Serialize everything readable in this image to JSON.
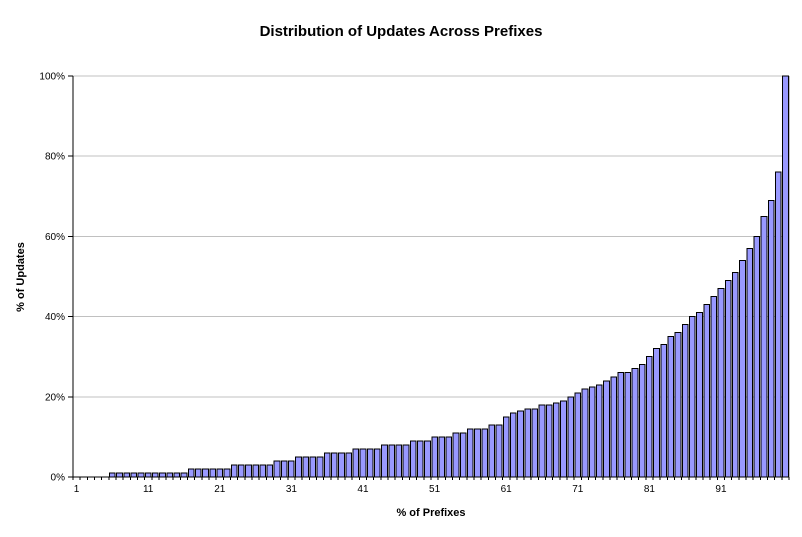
{
  "chart_data": {
    "type": "bar",
    "title": "Distribution of Updates Across Prefixes",
    "xlabel": "% of Prefixes",
    "ylabel": "% of Updates",
    "categories": [
      1,
      2,
      3,
      4,
      5,
      6,
      7,
      8,
      9,
      10,
      11,
      12,
      13,
      14,
      15,
      16,
      17,
      18,
      19,
      20,
      21,
      22,
      23,
      24,
      25,
      26,
      27,
      28,
      29,
      30,
      31,
      32,
      33,
      34,
      35,
      36,
      37,
      38,
      39,
      40,
      41,
      42,
      43,
      44,
      45,
      46,
      47,
      48,
      49,
      50,
      51,
      52,
      53,
      54,
      55,
      56,
      57,
      58,
      59,
      60,
      61,
      62,
      63,
      64,
      65,
      66,
      67,
      68,
      69,
      70,
      71,
      72,
      73,
      74,
      75,
      76,
      77,
      78,
      79,
      80,
      81,
      82,
      83,
      84,
      85,
      86,
      87,
      88,
      89,
      90,
      91,
      92,
      93,
      94,
      95,
      96,
      97,
      98,
      99,
      100
    ],
    "values": [
      0,
      0,
      0,
      0,
      0,
      1,
      1,
      1,
      1,
      1,
      1,
      1,
      1,
      1,
      1,
      1,
      2,
      2,
      2,
      2,
      2,
      2,
      3,
      3,
      3,
      3,
      3,
      3,
      4,
      4,
      4,
      5,
      5,
      5,
      5,
      6,
      6,
      6,
      6,
      7,
      7,
      7,
      7,
      8,
      8,
      8,
      8,
      9,
      9,
      9,
      10,
      10,
      10,
      11,
      11,
      12,
      12,
      12,
      13,
      13,
      15,
      16,
      16.5,
      17,
      17,
      18,
      18,
      18.5,
      19,
      20,
      21,
      22,
      22.5,
      23,
      24,
      25,
      26,
      26,
      27,
      28,
      30,
      32,
      33,
      35,
      36,
      38,
      40,
      41,
      43,
      45,
      47,
      49,
      51,
      54,
      57,
      60,
      65,
      69,
      76,
      100
    ],
    "ylim": [
      0,
      100
    ],
    "y_tick_values": [
      0,
      20,
      40,
      60,
      80,
      100
    ],
    "y_tick_labels": [
      "0%",
      "20%",
      "40%",
      "60%",
      "80%",
      "100%"
    ],
    "x_tick_positions": [
      1,
      11,
      21,
      31,
      41,
      51,
      61,
      71,
      81,
      91
    ],
    "x_tick_labels": [
      "1",
      "11",
      "21",
      "31",
      "41",
      "51",
      "61",
      "71",
      "81",
      "91"
    ],
    "grid": "horizontal",
    "legend": "none",
    "colors": {
      "bar_fill": "#9999FF",
      "bar_border": "#000000",
      "gridline": "#C0C0C0",
      "axis": "#000000",
      "plot_border": "#808080",
      "background": "#FFFFFF",
      "text": "#000000"
    }
  }
}
